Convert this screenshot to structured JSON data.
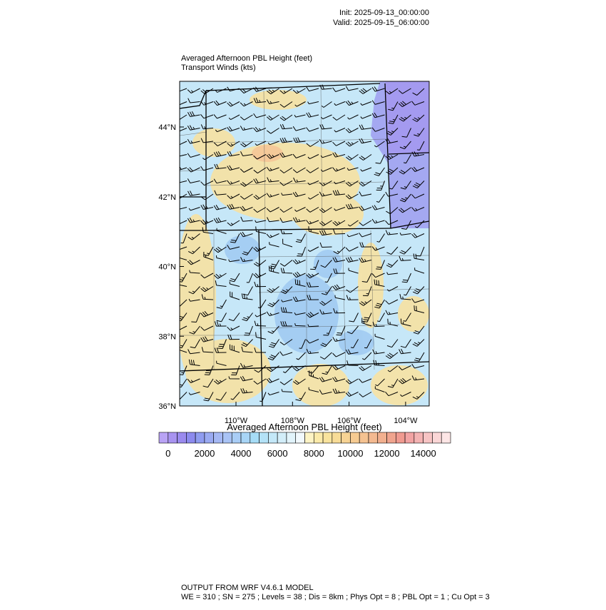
{
  "header": {
    "init": "Init: 2025-09-13_00:00:00",
    "valid": "Valid: 2025-09-15_06:00:00"
  },
  "titles": [
    "Averaged Afternoon PBL Height   (feet)",
    "Transport Winds   (kts)"
  ],
  "lat_labels": [
    "44°N",
    "42°N",
    "40°N",
    "38°N",
    "36°N"
  ],
  "lon_labels": [
    "110°W",
    "108°W",
    "106°W",
    "104°W"
  ],
  "colorbar": {
    "title": "Averaged Afternoon PBL Height  (feet)",
    "labels": [
      "0",
      "2000",
      "4000",
      "6000",
      "8000",
      "10000",
      "12000",
      "14000"
    ],
    "colors": [
      "#b9a3f5",
      "#a893f0",
      "#9a8aee",
      "#8c8aee",
      "#8f9cf0",
      "#9aaaf2",
      "#a5b8f4",
      "#a9c3f5",
      "#a9cdf6",
      "#a8d5f6",
      "#a6dcf6",
      "#b4e2f7",
      "#c4e8f8",
      "#d3eef9",
      "#e2f4fb",
      "#f2f9fd",
      "#fdf3c4",
      "#fbeaa9",
      "#f9e39d",
      "#f8dc97",
      "#f7d394",
      "#f6cb92",
      "#f5c291",
      "#f4b990",
      "#f2b08f",
      "#f0a48e",
      "#f09a90",
      "#f2a3a3",
      "#f4b3b3",
      "#f7c4c4",
      "#fad6d6",
      "#fde6e6"
    ]
  },
  "footer": [
    "OUTPUT FROM WRF V4.6.1 MODEL",
    "WE = 310 ; SN = 275 ; Levels = 38 ; Dis = 8km ; Phys Opt = 8 ; PBL Opt = 1 ; Cu Opt = 3"
  ]
}
